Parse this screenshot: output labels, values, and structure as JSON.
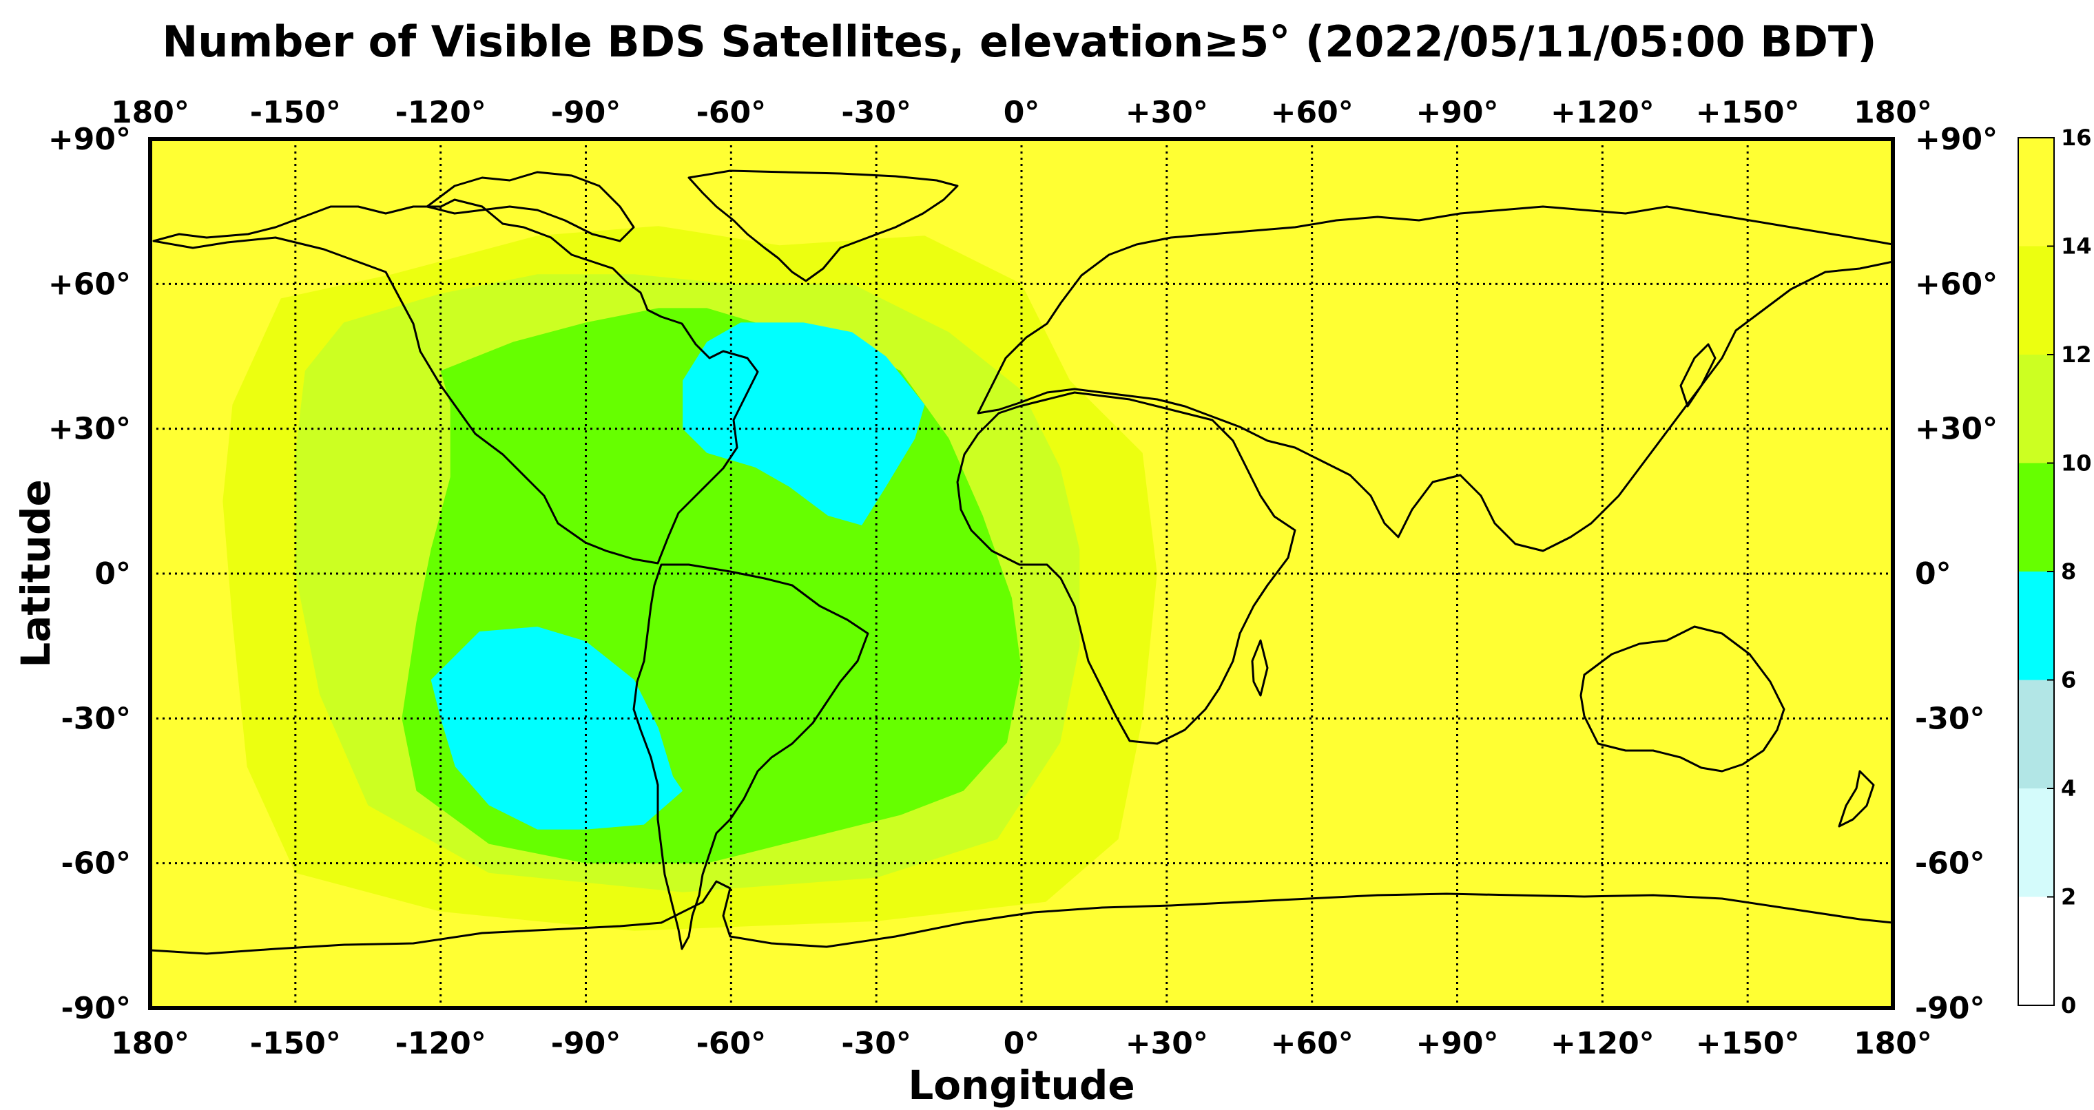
{
  "title": "Number of Visible BDS Satellites, elevation≥5° (2022/05/11/05:00 BDT)",
  "xlabel": "Longitude",
  "ylabel": "Latitude",
  "lon_ticks": [
    {
      "value": -180,
      "label": "180°"
    },
    {
      "value": -150,
      "label": "-150°"
    },
    {
      "value": -120,
      "label": "-120°"
    },
    {
      "value": -90,
      "label": "-90°"
    },
    {
      "value": -60,
      "label": "-60°"
    },
    {
      "value": -30,
      "label": "-30°"
    },
    {
      "value": 0,
      "label": "0°"
    },
    {
      "value": 30,
      "label": "+30°"
    },
    {
      "value": 60,
      "label": "+60°"
    },
    {
      "value": 90,
      "label": "+90°"
    },
    {
      "value": 120,
      "label": "+120°"
    },
    {
      "value": 150,
      "label": "+150°"
    },
    {
      "value": 180,
      "label": "180°"
    }
  ],
  "lat_ticks": [
    {
      "value": 90,
      "label": "+90°"
    },
    {
      "value": 60,
      "label": "+60°"
    },
    {
      "value": 30,
      "label": "+30°"
    },
    {
      "value": 0,
      "label": "0°"
    },
    {
      "value": -30,
      "label": "-30°"
    },
    {
      "value": -60,
      "label": "-60°"
    },
    {
      "value": -90,
      "label": "-90°"
    }
  ],
  "colorbar": {
    "ticks": [
      "0",
      "2",
      "4",
      "6",
      "8",
      "10",
      "12",
      "14",
      "16"
    ],
    "bands": [
      {
        "from": 0,
        "to": 2,
        "color": "#ffffff"
      },
      {
        "from": 2,
        "to": 4,
        "color": "#d4fbfb"
      },
      {
        "from": 4,
        "to": 6,
        "color": "#b2e6e6"
      },
      {
        "from": 6,
        "to": 8,
        "color": "#00ffff"
      },
      {
        "from": 8,
        "to": 10,
        "color": "#66ff00"
      },
      {
        "from": 10,
        "to": 12,
        "color": "#ccff22"
      },
      {
        "from": 12,
        "to": 14,
        "color": "#ecff10"
      },
      {
        "from": 14,
        "to": 16,
        "color": "#ffff33"
      }
    ]
  },
  "chart_data": {
    "type": "heatmap",
    "title": "Number of Visible BDS Satellites, elevation≥5° (2022/05/11/05:00 BDT)",
    "xlabel": "Longitude",
    "ylabel": "Latitude",
    "xlim": [
      -180,
      180
    ],
    "ylim": [
      -90,
      90
    ],
    "grid": true,
    "value_range": [
      0,
      16
    ],
    "base_value": 15,
    "regions": [
      {
        "value": 13,
        "polygon": [
          [
            -153,
            57
          ],
          [
            -130,
            62
          ],
          [
            -100,
            70
          ],
          [
            -75,
            72
          ],
          [
            -50,
            68
          ],
          [
            -20,
            70
          ],
          [
            0,
            60
          ],
          [
            10,
            40
          ],
          [
            25,
            25
          ],
          [
            28,
            0
          ],
          [
            25,
            -30
          ],
          [
            20,
            -55
          ],
          [
            5,
            -68
          ],
          [
            -30,
            -72
          ],
          [
            -80,
            -74
          ],
          [
            -120,
            -70
          ],
          [
            -150,
            -62
          ],
          [
            -160,
            -40
          ],
          [
            -163,
            -10
          ],
          [
            -165,
            15
          ],
          [
            -163,
            35
          ]
        ]
      },
      {
        "value": 11,
        "polygon": [
          [
            -140,
            52
          ],
          [
            -120,
            58
          ],
          [
            -100,
            62
          ],
          [
            -80,
            62
          ],
          [
            -60,
            60
          ],
          [
            -35,
            60
          ],
          [
            -15,
            50
          ],
          [
            0,
            38
          ],
          [
            8,
            22
          ],
          [
            12,
            5
          ],
          [
            12,
            -15
          ],
          [
            8,
            -35
          ],
          [
            -5,
            -55
          ],
          [
            -30,
            -63
          ],
          [
            -70,
            -66
          ],
          [
            -110,
            -62
          ],
          [
            -135,
            -48
          ],
          [
            -145,
            -25
          ],
          [
            -150,
            0
          ],
          [
            -150,
            25
          ],
          [
            -148,
            42
          ]
        ]
      },
      {
        "value": 9,
        "polygon": [
          [
            -120,
            42
          ],
          [
            -105,
            48
          ],
          [
            -90,
            52
          ],
          [
            -75,
            55
          ],
          [
            -65,
            55
          ],
          [
            -55,
            52
          ],
          [
            -40,
            50
          ],
          [
            -25,
            42
          ],
          [
            -15,
            28
          ],
          [
            -8,
            12
          ],
          [
            -2,
            -5
          ],
          [
            0,
            -20
          ],
          [
            -3,
            -35
          ],
          [
            -12,
            -45
          ],
          [
            -25,
            -50
          ],
          [
            -45,
            -55
          ],
          [
            -65,
            -60
          ],
          [
            -90,
            -60
          ],
          [
            -110,
            -56
          ],
          [
            -125,
            -45
          ],
          [
            -128,
            -30
          ],
          [
            -125,
            -10
          ],
          [
            -122,
            5
          ],
          [
            -118,
            20
          ],
          [
            -118,
            35
          ]
        ]
      },
      {
        "value": 7,
        "polygon": [
          [
            -70,
            40
          ],
          [
            -65,
            48
          ],
          [
            -58,
            52
          ],
          [
            -45,
            52
          ],
          [
            -35,
            50
          ],
          [
            -28,
            45
          ],
          [
            -20,
            35
          ],
          [
            -22,
            28
          ],
          [
            -28,
            18
          ],
          [
            -33,
            10
          ],
          [
            -40,
            12
          ],
          [
            -48,
            18
          ],
          [
            -55,
            22
          ],
          [
            -65,
            25
          ],
          [
            -70,
            30
          ]
        ]
      },
      {
        "value": 7,
        "polygon": [
          [
            -122,
            -22
          ],
          [
            -112,
            -12
          ],
          [
            -100,
            -11
          ],
          [
            -90,
            -14
          ],
          [
            -80,
            -22
          ],
          [
            -75,
            -32
          ],
          [
            -72,
            -42
          ],
          [
            -70,
            -45
          ],
          [
            -78,
            -52
          ],
          [
            -90,
            -53
          ],
          [
            -100,
            -53
          ],
          [
            -110,
            -48
          ],
          [
            -117,
            -40
          ],
          [
            -120,
            -30
          ]
        ]
      }
    ]
  }
}
